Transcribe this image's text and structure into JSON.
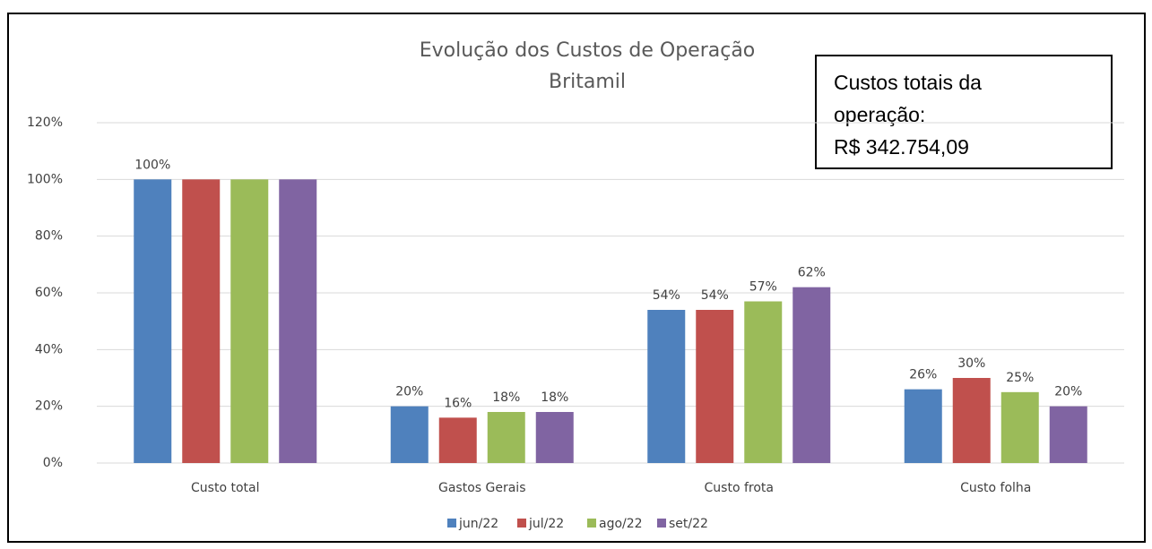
{
  "chart_data": {
    "type": "bar",
    "title": "Evolução dos Custos de Operação",
    "subtitle": "Britamil",
    "annotation": [
      "Custos totais da",
      "operação:",
      "R$ 342.754,09"
    ],
    "categories": [
      "Custo total",
      "Gastos Gerais",
      "Custo frota",
      "Custo folha"
    ],
    "series": [
      {
        "name": "jun/22",
        "color": "#4f81bd",
        "values": [
          100,
          20,
          54,
          26
        ],
        "value_labels": [
          "100%",
          "20%",
          "54%",
          "26%"
        ]
      },
      {
        "name": "jul/22",
        "color": "#c0504d",
        "values": [
          100,
          16,
          54,
          30
        ],
        "value_labels": [
          null,
          "16%",
          "54%",
          "30%"
        ]
      },
      {
        "name": "ago/22",
        "color": "#9bbb59",
        "values": [
          100,
          18,
          57,
          25
        ],
        "value_labels": [
          null,
          "18%",
          "57%",
          "25%"
        ]
      },
      {
        "name": "set/22",
        "color": "#8064a2",
        "values": [
          100,
          18,
          62,
          20
        ],
        "value_labels": [
          null,
          "18%",
          "62%",
          "20%"
        ]
      }
    ],
    "ylim": [
      0,
      120
    ],
    "yticks": [
      {
        "value": 0,
        "label": "0%"
      },
      {
        "value": 20,
        "label": "20%"
      },
      {
        "value": 40,
        "label": "40%"
      },
      {
        "value": 60,
        "label": "60%"
      },
      {
        "value": 80,
        "label": "80%"
      },
      {
        "value": 100,
        "label": "100%"
      },
      {
        "value": 120,
        "label": "120%"
      }
    ],
    "grid": true,
    "legend": "bottom"
  }
}
